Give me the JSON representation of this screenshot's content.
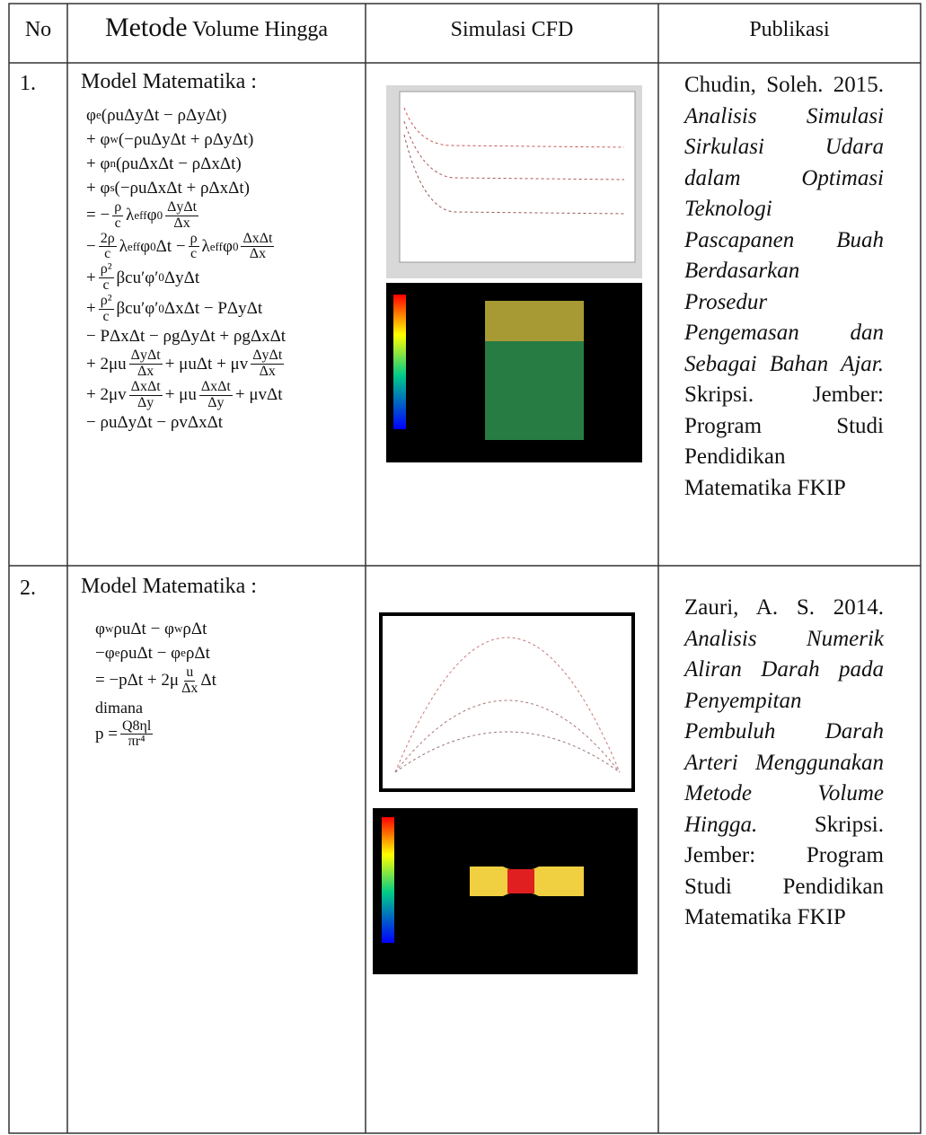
{
  "header": {
    "no": "No",
    "method": {
      "lead": "Metode",
      "rest": "Volume Hingga"
    },
    "simulation": "Simulasi CFD",
    "publication": "Publikasi"
  },
  "rows": [
    {
      "no": "1.",
      "model_label": "Model Matematika :",
      "equations": [
        [
          "φ",
          {
            "sub": "e"
          },
          "(ρuΔyΔt − ρΔyΔt)"
        ],
        [
          "+ φ",
          {
            "sub": "w"
          },
          "(−ρuΔyΔt + ρΔyΔt)"
        ],
        [
          "+ φ",
          {
            "sub": "n"
          },
          "(ρuΔxΔt − ρΔxΔt)"
        ],
        [
          "+ φ",
          {
            "sub": "s"
          },
          "(−ρuΔxΔt + ρΔxΔt)"
        ],
        [
          "= −",
          {
            "num": "ρ",
            "den": "c"
          },
          "λ",
          {
            "sub": "eff"
          },
          "φ",
          {
            "sub": "0"
          },
          {
            "num": "ΔyΔt",
            "den": "Δx"
          }
        ],
        [
          "−",
          {
            "num": "2ρ",
            "den": "c"
          },
          "λ",
          {
            "sub": "eff"
          },
          "φ",
          {
            "sub": "0"
          },
          "Δt − ",
          {
            "num": "ρ",
            "den": "c"
          },
          "λ",
          {
            "sub": "eff"
          },
          "φ",
          {
            "sub": "0"
          },
          {
            "num": "ΔxΔt",
            "den": "Δx"
          }
        ],
        [
          "+",
          {
            "num": "ρ²",
            "den": "c"
          },
          "βcu′φ′",
          {
            "sub": "0"
          },
          "ΔyΔt"
        ],
        [
          "+",
          {
            "num": "ρ²",
            "den": "c"
          },
          "βcu′φ′",
          {
            "sub": "0"
          },
          "ΔxΔt − PΔyΔt"
        ],
        [
          "− PΔxΔt − ρgΔyΔt + ρgΔxΔt"
        ],
        [
          "+ 2μu",
          {
            "num": "ΔyΔt",
            "den": "Δx"
          },
          "+ μuΔt + μv",
          {
            "num": "ΔyΔt",
            "den": "Δx"
          }
        ],
        [
          "+ 2μv",
          {
            "num": "ΔxΔt",
            "den": "Δy"
          },
          "+ μu",
          {
            "num": "ΔxΔt",
            "den": "Δy"
          },
          "+ μvΔt"
        ],
        [
          "− ρuΔyΔt − ρvΔxΔt"
        ]
      ],
      "publication": {
        "author": "Chudin, Soleh. 2015.",
        "title": "Analisis Simulasi Sirkulasi Udara dalam Optimasi Teknologi Pascapanen Buah Berdasarkan Prosedur Pengemasan dan Sebagai Bahan Ajar.",
        "details": "Skripsi. Jember: Program Studi Pendidikan Matematika FKIP"
      }
    },
    {
      "no": "2.",
      "model_label": "Model Matematika :",
      "equations": [
        [
          "φ",
          {
            "sub": "w"
          },
          "ρuΔt − φ",
          {
            "sub": "w"
          },
          "ρΔt"
        ],
        [
          "−φ",
          {
            "sub": "e"
          },
          "ρuΔt − φ",
          {
            "sub": "e"
          },
          "ρΔt"
        ],
        [
          "= −pΔt + 2μ",
          {
            "num": "u",
            "den": "Δx"
          },
          "Δt"
        ]
      ],
      "note": "dimana",
      "equations_after": [
        [
          "p = ",
          {
            "num": "Q8ηl",
            "den": "πr⁴"
          }
        ]
      ],
      "publication": {
        "author": "Zauri, A. S. 2014.",
        "title": "Analisis Numerik Aliran Darah pada Penyempitan Pembuluh Darah Arteri Menggunakan Metode Volume Hingga.",
        "details": "Skripsi. Jember: Program Studi Pendidikan Matematika FKIP"
      }
    }
  ]
}
